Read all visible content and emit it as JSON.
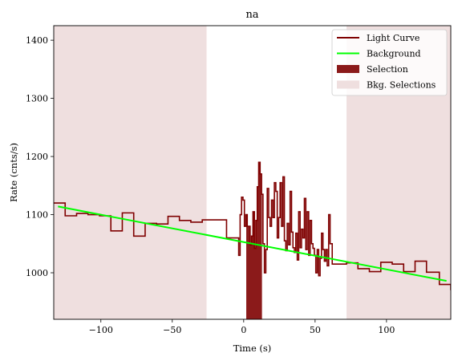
{
  "chart_data": {
    "type": "line",
    "title": "na",
    "xlabel": "Time (s)",
    "ylabel": "Rate (cnts/s)",
    "xlim": [
      -133,
      145
    ],
    "ylim": [
      920,
      1425
    ],
    "xticks": [
      -100,
      -50,
      0,
      50,
      100
    ],
    "xtick_labels": [
      "−100",
      "−50",
      "0",
      "50",
      "100"
    ],
    "yticks": [
      1000,
      1100,
      1200,
      1300,
      1400
    ],
    "ytick_labels": [
      "1000",
      "1100",
      "1200",
      "1300",
      "1400"
    ],
    "grid": false,
    "legend_position": "top-right",
    "colors": {
      "light_curve": "#7f0000",
      "background": "#00ff00",
      "selection": "#8b1a1a",
      "bkg_selection": "#efdfdf"
    },
    "legend": [
      {
        "key": "light_curve",
        "label": "Light Curve",
        "kind": "line"
      },
      {
        "key": "background",
        "label": "Background",
        "kind": "line"
      },
      {
        "key": "selection",
        "label": "Selection",
        "kind": "patch"
      },
      {
        "key": "bkg_selection",
        "label": "Bkg. Selections",
        "kind": "patch"
      }
    ],
    "bkg_selections": [
      [
        -133,
        -26
      ],
      [
        72,
        145
      ]
    ],
    "selection": [
      1.8,
      12.8
    ],
    "background_line": {
      "x": [
        -130,
        142
      ],
      "y": [
        1114,
        986
      ]
    },
    "light_curve": {
      "edges": [
        -133,
        -125,
        -117,
        -109,
        -101,
        -93,
        -85,
        -77,
        -69,
        -61,
        -53,
        -45,
        -37,
        -29,
        -22,
        -12,
        -3.5,
        -2.5,
        -1.5,
        -0.5,
        0.5,
        1.5,
        2.5,
        3.5,
        4.5,
        5.5,
        6.5,
        7.5,
        8.5,
        9.5,
        10.5,
        11.5,
        12.5,
        13.5,
        14.5,
        15.5,
        16.5,
        17.5,
        18.5,
        19.5,
        20.5,
        21.5,
        22.5,
        23.5,
        24.5,
        25.5,
        26.5,
        27.5,
        28.5,
        29.5,
        30.5,
        31.5,
        32.5,
        33.5,
        34.5,
        35.5,
        36.5,
        37.5,
        38.5,
        39.5,
        40.5,
        41.5,
        42.5,
        43.5,
        44.5,
        45.5,
        46.5,
        47.5,
        48.5,
        49.5,
        50.5,
        51.5,
        52.5,
        53.5,
        54.5,
        55.5,
        56.5,
        57.5,
        58.5,
        59.5,
        60.5,
        62,
        72,
        80,
        88,
        96,
        104,
        112,
        120,
        128,
        137,
        145
      ],
      "rates": [
        1120,
        1098,
        1102,
        1100,
        1098,
        1072,
        1103,
        1063,
        1085,
        1084,
        1097,
        1090,
        1087,
        1091,
        1091,
        1060,
        1030,
        1100,
        1130,
        1125,
        1080,
        1100,
        1080,
        1080,
        1048,
        1063,
        1105,
        1042,
        1090,
        1148,
        1190,
        1170,
        1135,
        1050,
        1000,
        1040,
        1145,
        1095,
        1080,
        1125,
        1095,
        1155,
        1140,
        1060,
        1095,
        1155,
        1080,
        1165,
        1055,
        1038,
        1085,
        1048,
        1140,
        1070,
        1043,
        1035,
        1068,
        1022,
        1105,
        1043,
        1075,
        1060,
        1128,
        1040,
        1105,
        1030,
        1090,
        1050,
        1042,
        1030,
        1000,
        1040,
        995,
        1025,
        1068,
        1040,
        1020,
        1040,
        1012,
        1100,
        1050,
        1015,
        1017,
        1007,
        1002,
        1018,
        1015,
        1002,
        1020,
        1001,
        980,
        970
      ]
    }
  }
}
